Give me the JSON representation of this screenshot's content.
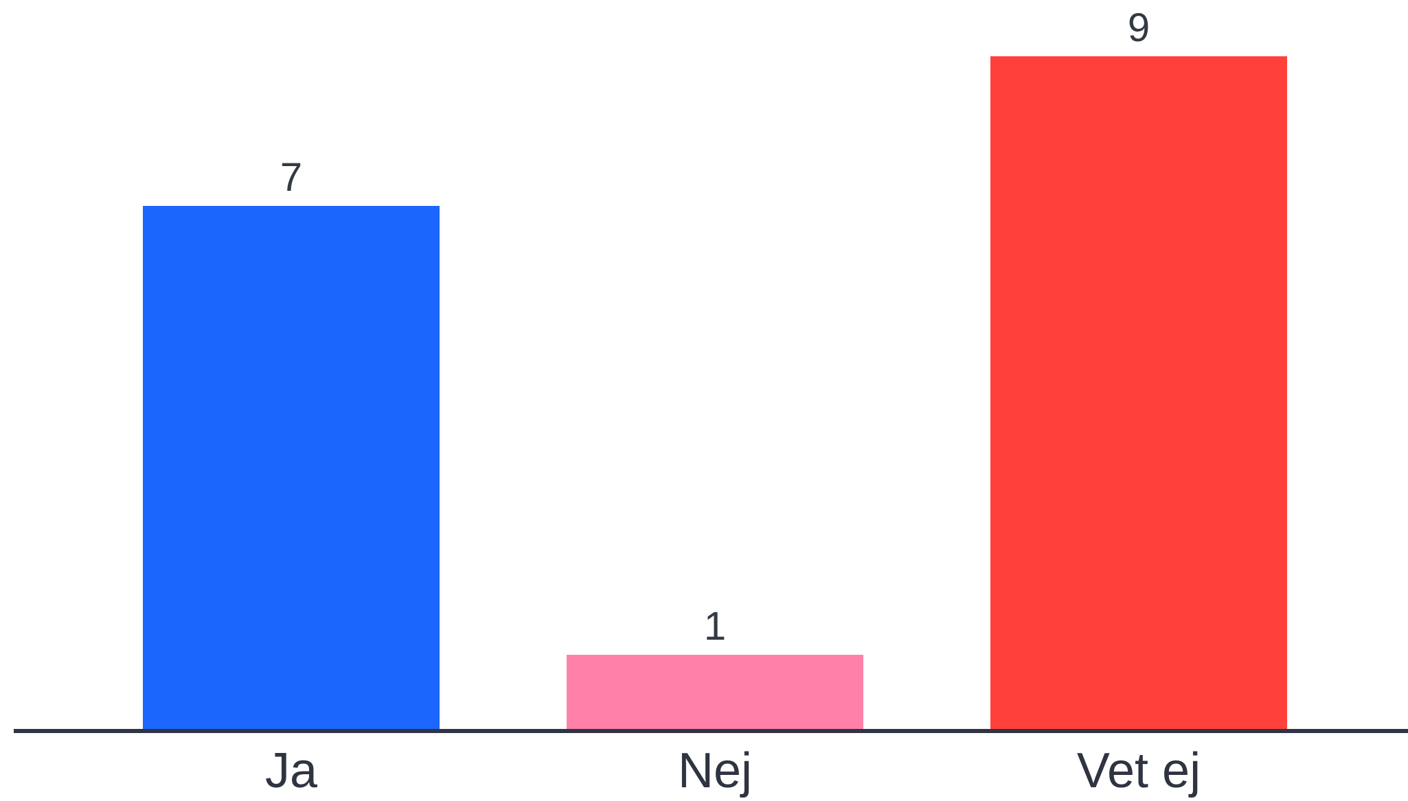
{
  "chart_data": {
    "type": "bar",
    "title": "",
    "xlabel": "",
    "ylabel": "",
    "categories": [
      "Ja",
      "Nej",
      "Vet ej"
    ],
    "values": [
      7,
      1,
      9
    ],
    "colors": [
      "#1b67fd",
      "#ff80a8",
      "#ff403b"
    ],
    "ylim": [
      0,
      9
    ],
    "grid": false,
    "legend": "none",
    "axis_color": "#2f3542"
  }
}
